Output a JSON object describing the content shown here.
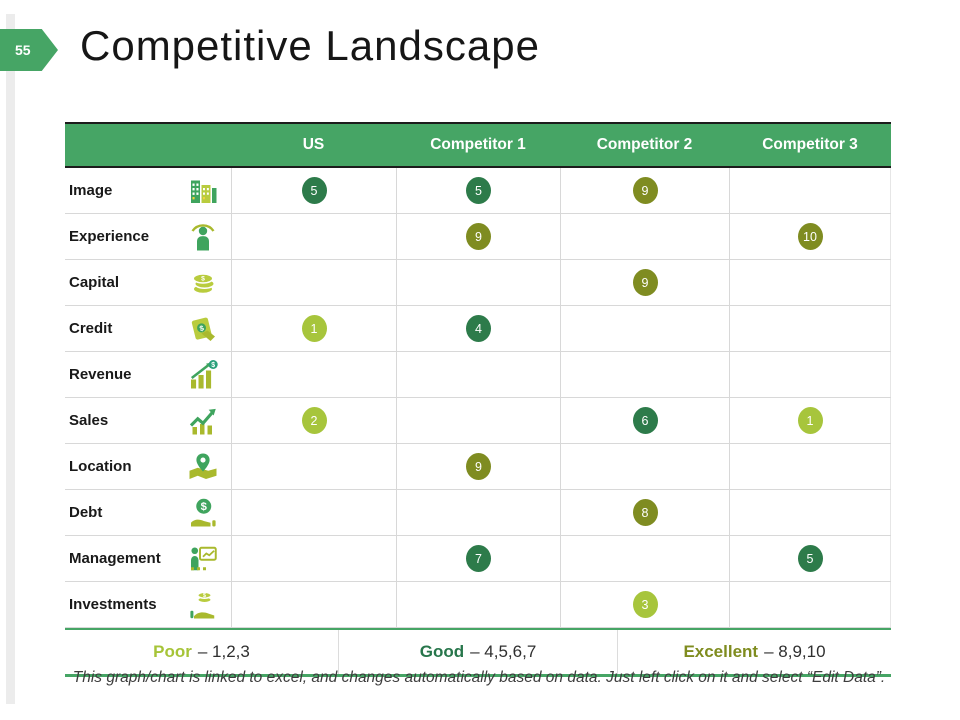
{
  "slide": {
    "page_number": "55",
    "title": "Competitive Landscape",
    "footer": "This graph/chart is linked to excel, and changes automatically based on data. Just left click on it and select “Edit Data”."
  },
  "table": {
    "columns": [
      "US",
      "Competitor 1",
      "Competitor 2",
      "Competitor 3"
    ],
    "rows": [
      {
        "label": "Image",
        "icon": "building-icon",
        "values": [
          {
            "v": 5,
            "tier": "good"
          },
          {
            "v": 5,
            "tier": "good"
          },
          {
            "v": 9,
            "tier": "excellent"
          },
          null
        ]
      },
      {
        "label": "Experience",
        "icon": "person-icon",
        "values": [
          null,
          {
            "v": 9,
            "tier": "excellent"
          },
          null,
          {
            "v": 10,
            "tier": "excellent"
          }
        ]
      },
      {
        "label": "Capital",
        "icon": "coins-icon",
        "values": [
          null,
          null,
          {
            "v": 9,
            "tier": "excellent"
          },
          null
        ]
      },
      {
        "label": "Credit",
        "icon": "money-in-hand-icon",
        "values": [
          {
            "v": 1,
            "tier": "poor"
          },
          {
            "v": 4,
            "tier": "good"
          },
          null,
          null
        ]
      },
      {
        "label": "Revenue",
        "icon": "revenue-chart-icon",
        "values": [
          null,
          null,
          null,
          null
        ]
      },
      {
        "label": "Sales",
        "icon": "sales-growth-icon",
        "values": [
          {
            "v": 2,
            "tier": "poor"
          },
          null,
          {
            "v": 6,
            "tier": "good"
          },
          {
            "v": 1,
            "tier": "poor"
          }
        ]
      },
      {
        "label": "Location",
        "icon": "map-pin-icon",
        "values": [
          null,
          {
            "v": 9,
            "tier": "excellent"
          },
          null,
          null
        ]
      },
      {
        "label": "Debt",
        "icon": "dollar-hand-icon",
        "values": [
          null,
          null,
          {
            "v": 8,
            "tier": "excellent"
          },
          null
        ]
      },
      {
        "label": "Management",
        "icon": "presentation-icon",
        "values": [
          null,
          {
            "v": 7,
            "tier": "good"
          },
          null,
          {
            "v": 5,
            "tier": "good"
          }
        ]
      },
      {
        "label": "Investments",
        "icon": "investment-hand-icon",
        "values": [
          null,
          null,
          {
            "v": 3,
            "tier": "poor"
          },
          null
        ]
      }
    ]
  },
  "legend": [
    {
      "word": "Poor",
      "rest": "– 1,2,3",
      "color": "#a6c438"
    },
    {
      "word": "Good",
      "rest": "– 4,5,6,7",
      "color": "#27764b"
    },
    {
      "word": "Excellent",
      "rest": "– 8,9,10",
      "color": "#7f8c1f"
    }
  ],
  "colors": {
    "accent_green": "#46a565",
    "badge_poor": "#a7c53c",
    "badge_good": "#2d7b4a",
    "badge_excellent": "#7f8c21"
  }
}
